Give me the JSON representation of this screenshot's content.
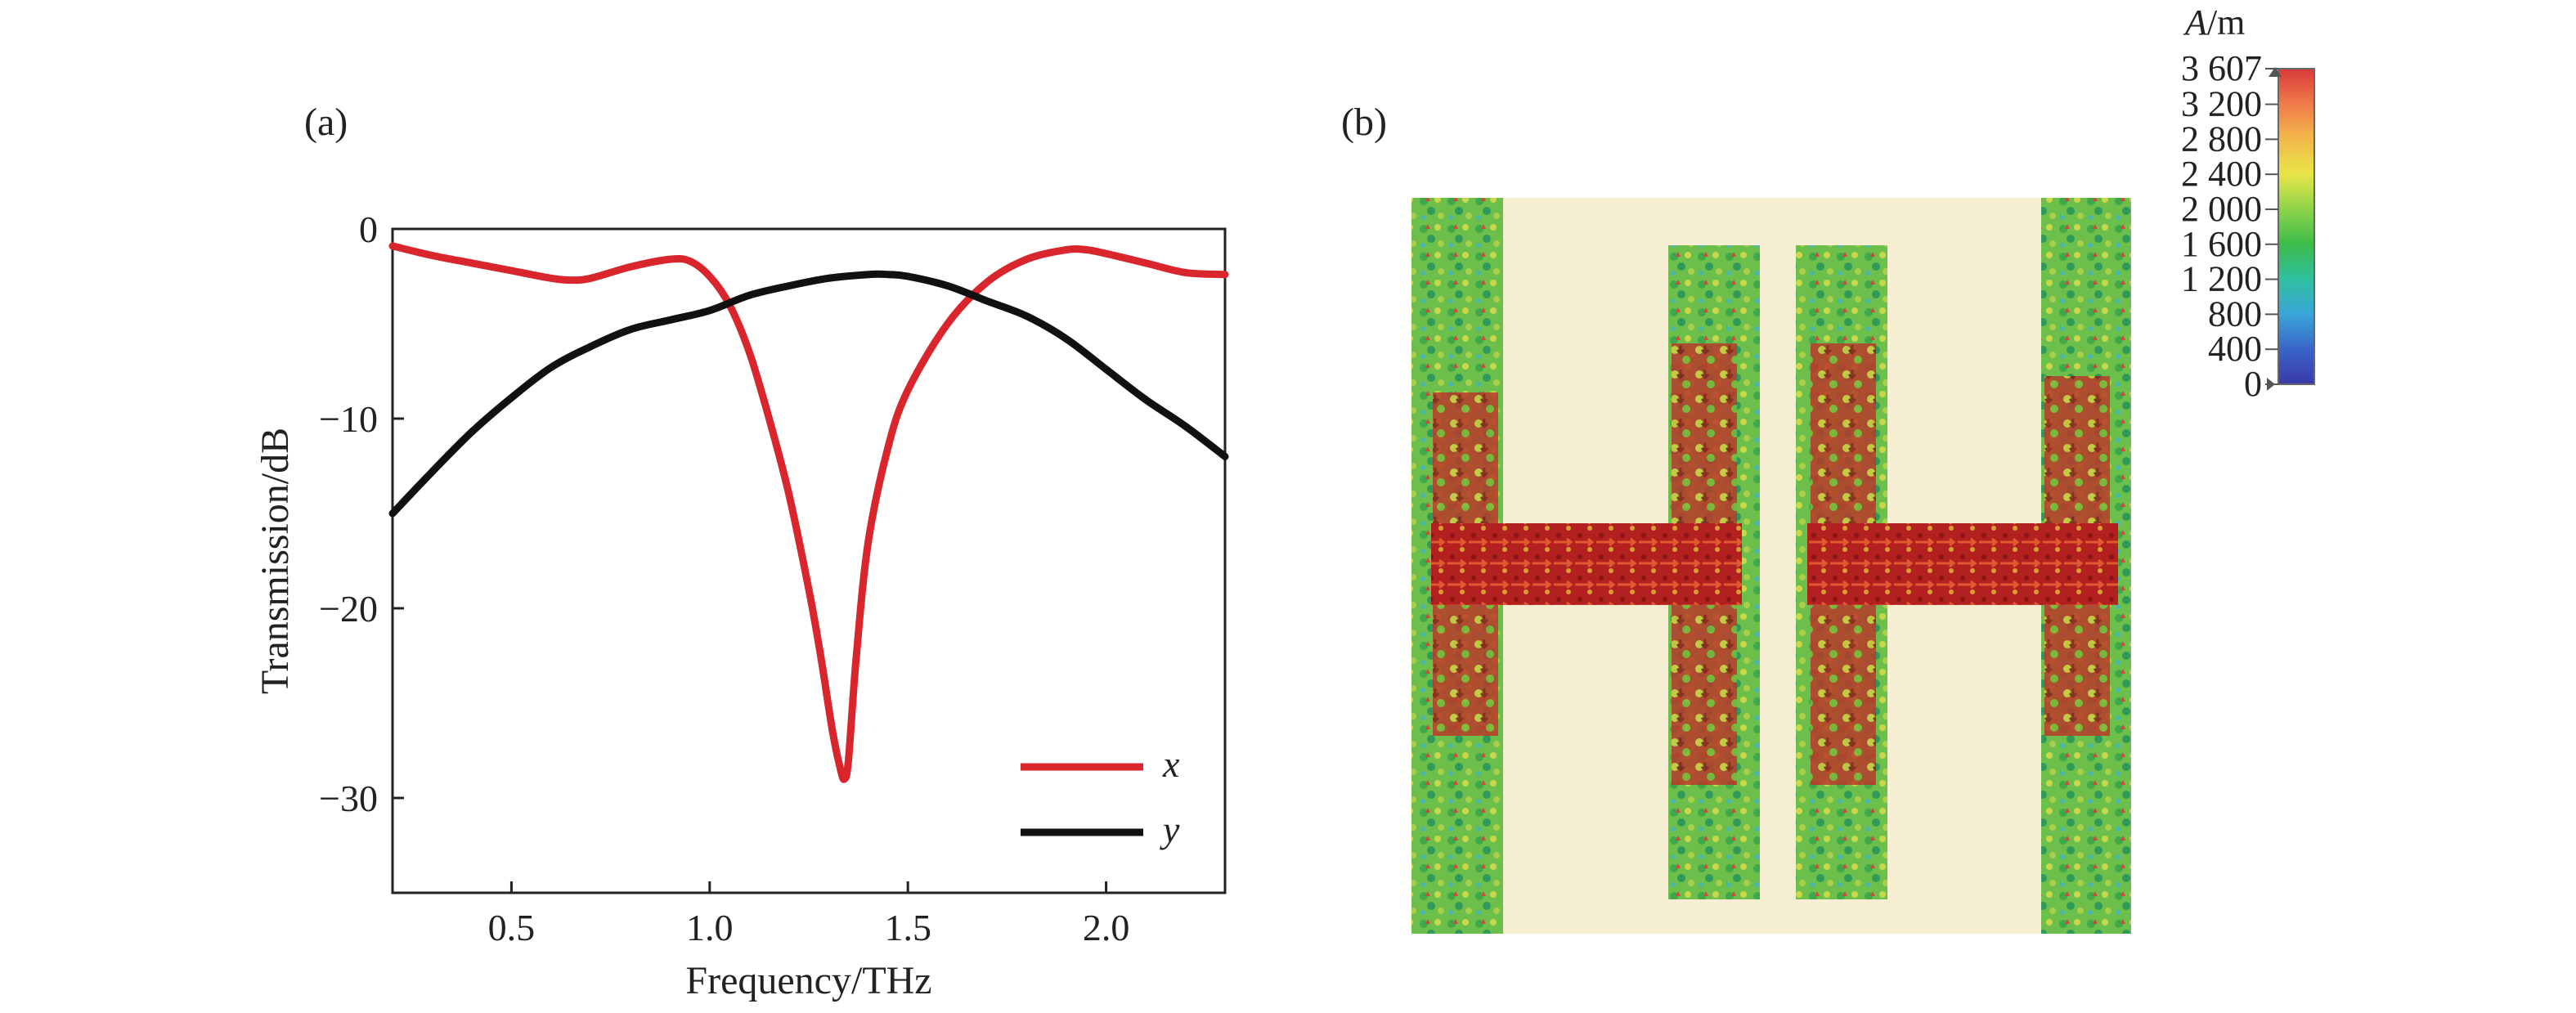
{
  "panels": {
    "a": "(a)",
    "b": "(b)"
  },
  "chart_data": [
    {
      "type": "line",
      "xlabel": "Frequency/THz",
      "ylabel": "Transmission/dB",
      "xlim": [
        0.2,
        2.3
      ],
      "ylim": [
        -35,
        0
      ],
      "xticks": [
        0.5,
        1.0,
        1.5,
        2.0
      ],
      "xtick_labels": [
        "0.5",
        "1.0",
        "1.5",
        "2.0"
      ],
      "yticks": [
        0,
        -10,
        -20,
        -30
      ],
      "ytick_labels": [
        "0",
        "−10",
        "−20",
        "−30"
      ],
      "legend_position": "lower-right",
      "grid": false,
      "series": [
        {
          "name": "x",
          "color": "#d9262c",
          "x": [
            0.2,
            0.3,
            0.4,
            0.5,
            0.6,
            0.65,
            0.7,
            0.8,
            0.9,
            0.95,
            1.0,
            1.05,
            1.1,
            1.15,
            1.2,
            1.25,
            1.28,
            1.31,
            1.33,
            1.34,
            1.35,
            1.37,
            1.4,
            1.45,
            1.5,
            1.6,
            1.7,
            1.8,
            1.9,
            1.95,
            2.0,
            2.1,
            2.2,
            2.3
          ],
          "y": [
            -0.9,
            -1.4,
            -1.8,
            -2.2,
            -2.6,
            -2.7,
            -2.6,
            -2.0,
            -1.6,
            -1.7,
            -2.5,
            -4.0,
            -6.5,
            -10.0,
            -14.0,
            -19.0,
            -22.5,
            -26.5,
            -28.5,
            -29.0,
            -28.0,
            -22.5,
            -16.5,
            -11.5,
            -8.5,
            -5.0,
            -2.8,
            -1.6,
            -1.1,
            -1.1,
            -1.3,
            -1.8,
            -2.3,
            -2.4
          ]
        },
        {
          "name": "y",
          "color": "#111111",
          "x": [
            0.2,
            0.3,
            0.4,
            0.5,
            0.6,
            0.7,
            0.8,
            0.9,
            1.0,
            1.1,
            1.2,
            1.3,
            1.4,
            1.45,
            1.5,
            1.6,
            1.7,
            1.8,
            1.9,
            2.0,
            2.1,
            2.2,
            2.3
          ],
          "y": [
            -15.0,
            -12.8,
            -10.7,
            -8.9,
            -7.3,
            -6.2,
            -5.3,
            -4.8,
            -4.3,
            -3.5,
            -3.0,
            -2.6,
            -2.4,
            -2.4,
            -2.5,
            -3.0,
            -3.8,
            -4.6,
            -5.8,
            -7.4,
            -9.0,
            -10.4,
            -12.0
          ]
        }
      ]
    },
    {
      "type": "heatmap",
      "colorbar": {
        "unit_italic": "A",
        "unit_rest": "/m",
        "min": 0,
        "max": 3607,
        "tick_labels": [
          "3 607",
          "3 200",
          "2 800",
          "2 400",
          "2 000",
          "1 600",
          "1 200",
          "800",
          "400",
          "0"
        ],
        "tick_values": [
          3607,
          3200,
          2800,
          2400,
          2000,
          1600,
          1200,
          800,
          400,
          0
        ],
        "colors": [
          "#d83a3a",
          "#f07a4a",
          "#f2b84a",
          "#e8e447",
          "#8fd44a",
          "#3cbc4a",
          "#2fc0a0",
          "#3aa6d8",
          "#3a64c8",
          "#3a3aa8"
        ]
      },
      "background_color": "#f6eed2"
    }
  ]
}
